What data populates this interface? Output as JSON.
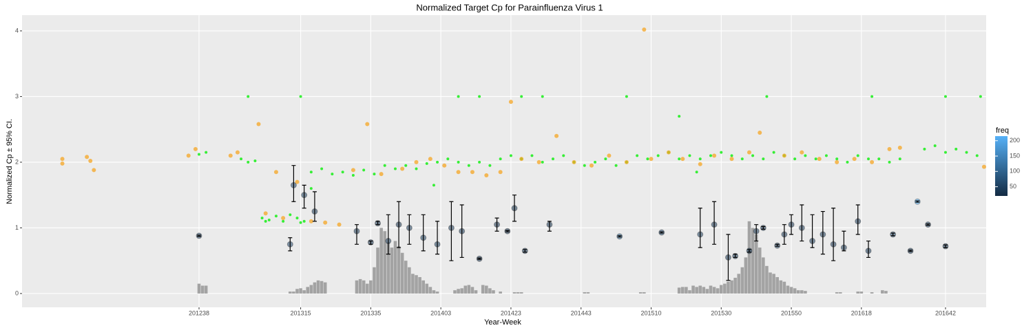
{
  "chart_data": {
    "type": "scatter",
    "title": "Normalized Target Cp for Parainfluenza Virus 1",
    "x_label": "Year-Week",
    "y_label": "Normalized Cp  ± 95% CI.",
    "xlim": [
      -12.5,
      262.6
    ],
    "ylim": [
      -0.21,
      4.24
    ],
    "xticks": [
      {
        "value": 38,
        "label": "201238"
      },
      {
        "value": 67,
        "label": "201315"
      },
      {
        "value": 87,
        "label": "201335"
      },
      {
        "value": 107,
        "label": "201403"
      },
      {
        "value": 127,
        "label": "201423"
      },
      {
        "value": 147,
        "label": "201443"
      },
      {
        "value": 167,
        "label": "201510"
      },
      {
        "value": 187,
        "label": "201530"
      },
      {
        "value": 207,
        "label": "201550"
      },
      {
        "value": 227,
        "label": "201618"
      },
      {
        "value": 251,
        "label": "201642"
      }
    ],
    "yticks": [
      0,
      1,
      2,
      3,
      4
    ],
    "grid": true,
    "background": "#ebebeb",
    "bars": {
      "color": "#a3a3a3",
      "x": [
        38,
        39,
        40,
        64,
        65,
        66,
        67,
        68,
        69,
        70,
        71,
        72,
        73,
        74,
        83,
        84,
        85,
        86,
        87,
        88,
        89,
        90,
        91,
        92,
        93,
        94,
        95,
        96,
        97,
        98,
        99,
        100,
        101,
        102,
        103,
        104,
        105,
        106,
        111,
        112,
        113,
        114,
        115,
        116,
        117,
        119,
        120,
        121,
        122,
        124,
        128,
        129,
        130,
        148,
        149,
        164,
        165,
        175,
        176,
        177,
        178,
        179,
        180,
        181,
        182,
        183,
        184,
        185,
        186,
        187,
        188,
        189,
        190,
        191,
        192,
        193,
        194,
        195,
        196,
        197,
        198,
        199,
        200,
        201,
        202,
        203,
        204,
        205,
        206,
        207,
        208,
        209,
        210,
        211,
        220,
        221,
        226,
        227,
        230,
        233,
        234
      ],
      "values": [
        0.15,
        0.12,
        0.12,
        0.03,
        0.03,
        0.07,
        0.08,
        0.05,
        0.1,
        0.13,
        0.17,
        0.2,
        0.19,
        0.17,
        0.2,
        0.22,
        0.2,
        0.15,
        0.2,
        0.4,
        0.7,
        1.0,
        0.95,
        0.78,
        0.7,
        0.8,
        0.72,
        0.62,
        0.5,
        0.4,
        0.3,
        0.28,
        0.25,
        0.2,
        0.15,
        0.1,
        0.05,
        0.03,
        0.05,
        0.07,
        0.08,
        0.12,
        0.13,
        0.1,
        0.05,
        0.13,
        0.12,
        0.08,
        0.05,
        0.03,
        0.02,
        0.02,
        0.02,
        0.02,
        0.02,
        0.02,
        0.02,
        0.09,
        0.1,
        0.1,
        0.05,
        0.12,
        0.1,
        0.12,
        0.1,
        0.07,
        0.12,
        0.1,
        0.08,
        0.13,
        0.15,
        0.18,
        0.2,
        0.24,
        0.3,
        0.4,
        0.55,
        1.1,
        1.0,
        0.9,
        0.7,
        0.55,
        0.42,
        0.32,
        0.3,
        0.25,
        0.2,
        0.18,
        0.12,
        0.1,
        0.08,
        0.05,
        0.05,
        0.04,
        0.02,
        0.02,
        0.03,
        0.03,
        0.02,
        0.05,
        0.04
      ]
    },
    "series": [
      {
        "color": "#22ee22",
        "x": [
          38,
          40,
          50,
          52,
          54,
          56,
          57,
          58,
          60,
          62,
          64,
          66,
          67,
          68,
          70,
          73,
          76,
          79,
          82,
          85,
          88,
          91,
          94,
          97,
          100,
          103,
          106,
          109,
          112,
          115,
          118,
          121,
          124,
          127,
          130,
          133,
          136,
          139,
          142,
          145,
          148,
          151,
          154,
          157,
          160,
          163,
          166,
          169,
          172,
          175,
          178,
          181,
          184,
          187,
          190,
          193,
          196,
          199,
          202,
          205,
          208,
          211,
          214,
          217,
          220,
          223,
          226,
          229,
          232,
          235,
          238,
          245,
          248,
          251,
          254,
          257,
          260,
          52,
          67,
          112,
          118,
          130,
          136,
          160,
          175,
          200,
          230,
          251,
          261,
          70,
          105,
          180
        ],
        "values": [
          2.12,
          2.15,
          2.05,
          2.0,
          2.02,
          1.15,
          1.1,
          1.12,
          1.18,
          1.1,
          1.2,
          1.15,
          1.08,
          1.1,
          1.85,
          1.9,
          1.82,
          1.85,
          1.8,
          1.88,
          1.82,
          1.95,
          1.9,
          1.95,
          1.9,
          1.98,
          2.0,
          2.05,
          2.0,
          1.95,
          2.0,
          1.95,
          2.05,
          2.1,
          2.05,
          2.1,
          2.0,
          2.05,
          2.1,
          2.0,
          1.95,
          2.0,
          2.05,
          1.95,
          2.0,
          2.1,
          2.05,
          2.1,
          2.15,
          2.05,
          2.1,
          2.05,
          2.1,
          2.15,
          2.1,
          2.05,
          2.1,
          2.05,
          2.15,
          2.1,
          2.05,
          2.1,
          2.05,
          2.1,
          2.05,
          2.0,
          2.1,
          2.05,
          2.05,
          2.0,
          2.05,
          2.2,
          2.25,
          2.15,
          2.2,
          2.15,
          2.1,
          3.0,
          3.0,
          3.0,
          3.0,
          3.0,
          3.0,
          3.0,
          2.7,
          3.0,
          3.0,
          3.0,
          3.0,
          1.6,
          1.65,
          1.85
        ]
      },
      {
        "color": "#f5a623",
        "x": [
          -1,
          -1,
          6,
          7,
          8,
          35,
          37,
          47,
          49,
          55,
          57,
          60,
          62,
          66,
          70,
          74,
          78,
          82,
          86,
          90,
          96,
          100,
          104,
          108,
          112,
          116,
          120,
          124,
          127,
          130,
          135,
          140,
          145,
          150,
          155,
          160,
          165,
          167,
          172,
          176,
          181,
          185,
          190,
          195,
          198,
          205,
          210,
          215,
          220,
          225,
          230,
          235,
          238,
          262
        ],
        "values": [
          2.05,
          1.98,
          2.08,
          2.02,
          1.88,
          2.1,
          2.2,
          2.1,
          2.15,
          2.58,
          1.22,
          1.85,
          1.15,
          1.7,
          1.1,
          1.08,
          1.05,
          1.88,
          2.58,
          1.82,
          1.9,
          2.0,
          2.05,
          1.95,
          1.85,
          1.85,
          1.8,
          1.85,
          2.92,
          2.05,
          2.0,
          2.4,
          2.0,
          1.95,
          2.1,
          2.0,
          4.02,
          2.05,
          2.15,
          2.05,
          1.97,
          2.1,
          2.05,
          2.15,
          2.45,
          2.1,
          2.15,
          2.05,
          2.0,
          2.05,
          2.0,
          2.2,
          2.22,
          1.93
        ]
      }
    ],
    "freq_points": {
      "x": [
        38,
        64,
        65,
        68,
        71,
        83,
        87,
        89,
        92,
        95,
        98,
        102,
        106,
        110,
        113,
        118,
        123,
        126,
        128,
        131,
        138,
        158,
        170,
        181,
        185,
        189,
        191,
        195,
        197,
        199,
        203,
        205,
        207,
        210,
        213,
        216,
        219,
        222,
        226,
        229,
        236,
        241,
        243,
        246,
        251
      ],
      "values": [
        0.88,
        0.75,
        1.65,
        1.5,
        1.25,
        0.95,
        0.78,
        1.07,
        0.8,
        1.05,
        1.0,
        0.85,
        0.75,
        1.0,
        0.95,
        0.53,
        1.05,
        0.95,
        1.3,
        0.65,
        1.05,
        0.87,
        0.93,
        0.9,
        1.05,
        0.55,
        0.57,
        0.65,
        0.95,
        1.0,
        0.73,
        0.9,
        1.05,
        1.0,
        0.8,
        0.9,
        0.75,
        0.7,
        1.1,
        0.65,
        0.9,
        0.65,
        1.4,
        1.05,
        0.72
      ],
      "lower": [
        0.87,
        0.65,
        1.4,
        1.3,
        1.1,
        0.75,
        0.75,
        1.05,
        0.6,
        0.7,
        0.75,
        0.65,
        0.6,
        0.5,
        0.55,
        0.52,
        0.95,
        0.94,
        1.1,
        0.63,
        0.95,
        0.86,
        0.92,
        0.7,
        0.75,
        0.2,
        0.55,
        0.63,
        0.8,
        0.98,
        0.72,
        0.75,
        0.9,
        0.8,
        0.7,
        0.6,
        0.5,
        0.65,
        0.9,
        0.55,
        0.88,
        0.64,
        1.39,
        1.04,
        0.7
      ],
      "upper": [
        0.89,
        0.85,
        1.95,
        1.65,
        1.55,
        1.05,
        0.8,
        1.1,
        1.2,
        1.4,
        1.2,
        1.2,
        1.1,
        1.4,
        1.35,
        0.54,
        1.15,
        0.96,
        1.5,
        0.67,
        1.1,
        0.88,
        0.94,
        1.3,
        1.4,
        0.9,
        0.6,
        0.67,
        1.05,
        1.02,
        0.75,
        1.05,
        1.2,
        1.35,
        1.2,
        1.25,
        1.3,
        0.95,
        1.35,
        0.8,
        0.92,
        0.66,
        1.41,
        1.06,
        0.74
      ],
      "freq": [
        50,
        60,
        60,
        50,
        40,
        40,
        30,
        30,
        40,
        30,
        40,
        50,
        50,
        40,
        40,
        30,
        30,
        30,
        40,
        40,
        40,
        100,
        60,
        50,
        40,
        40,
        40,
        50,
        40,
        40,
        40,
        40,
        40,
        40,
        40,
        40,
        40,
        40,
        40,
        40,
        60,
        40,
        200,
        40,
        40
      ]
    },
    "freq_legend": {
      "title": "freq",
      "lim": [
        20,
        215
      ],
      "ticks": [
        50,
        100,
        150,
        200
      ],
      "colors": [
        "#132b43",
        "#56b1f7"
      ]
    }
  }
}
